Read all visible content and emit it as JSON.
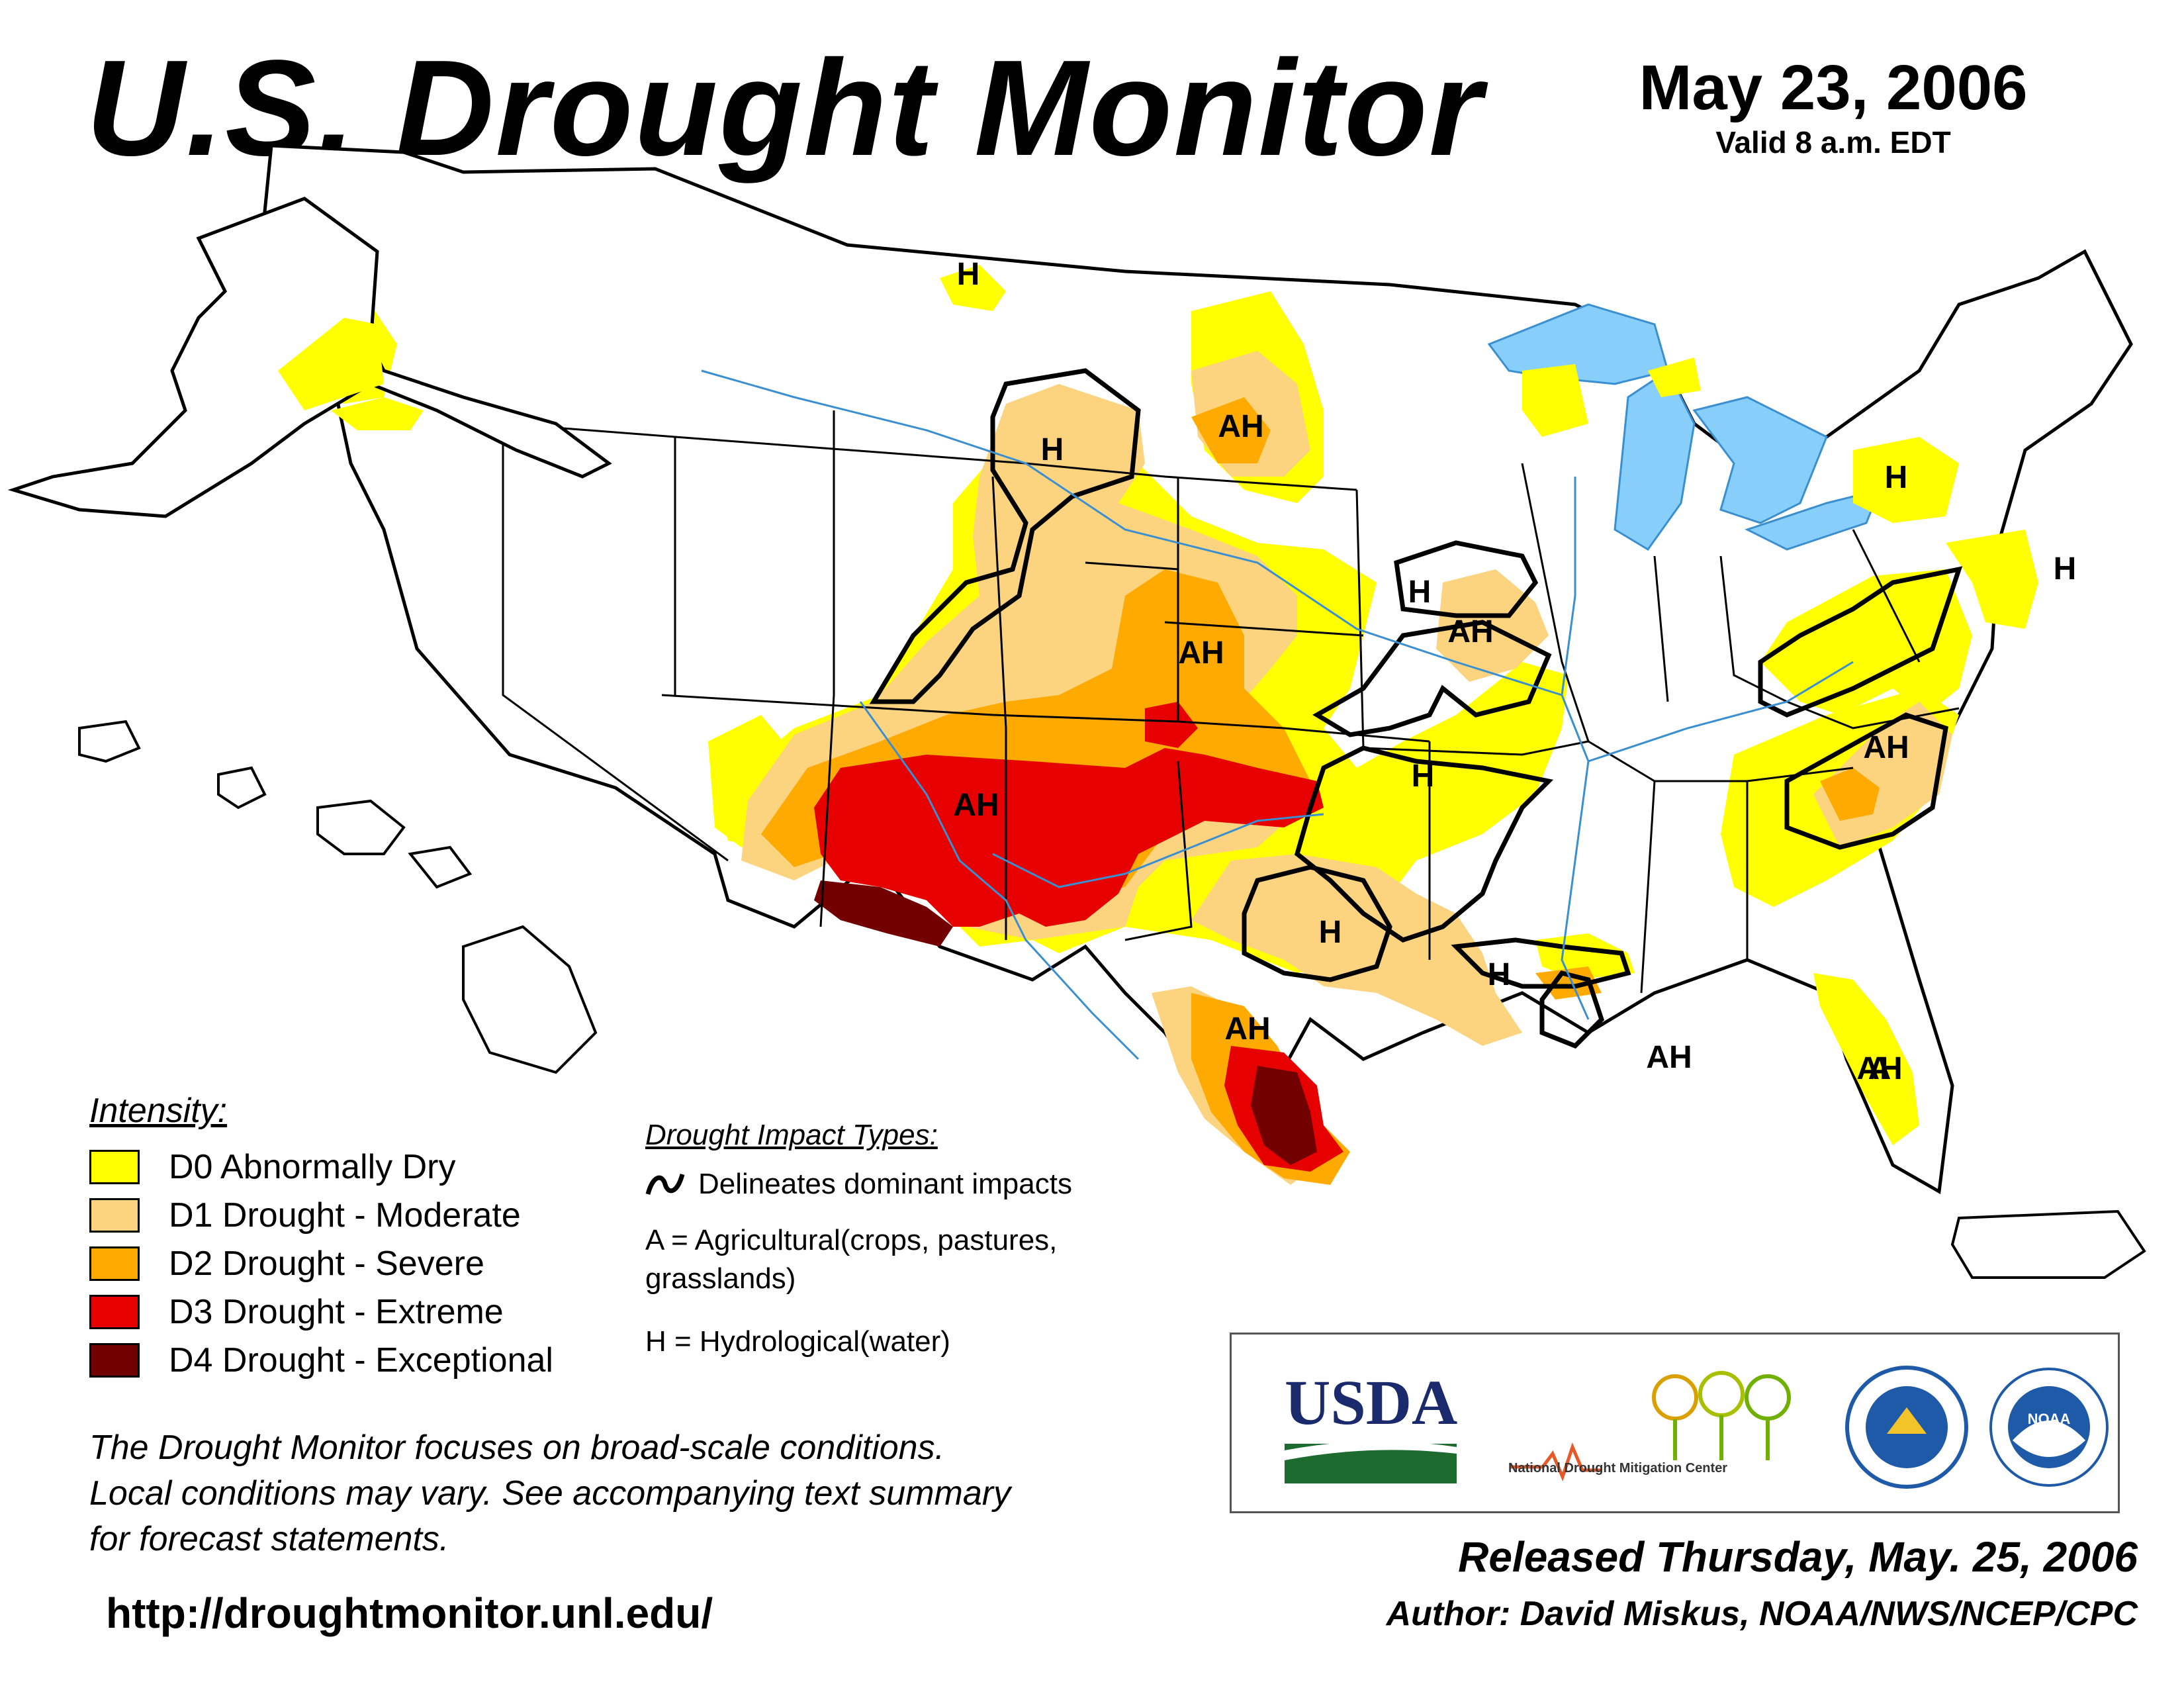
{
  "header": {
    "title": "U.S. Drought Monitor",
    "date": "May 23, 2006",
    "valid_time": "Valid 8 a.m. EDT"
  },
  "colors": {
    "D0": "#ffff00",
    "D1": "#fcd37f",
    "D2": "#ffaa00",
    "D3": "#e60000",
    "D4": "#730000",
    "water": "#87cefa",
    "boundary": "#000000",
    "county": "#999999"
  },
  "legend": {
    "heading": "Intensity:",
    "items": [
      {
        "code": "D0",
        "label": "D0 Abnormally Dry",
        "color": "#ffff00"
      },
      {
        "code": "D1",
        "label": "D1 Drought - Moderate",
        "color": "#fcd37f"
      },
      {
        "code": "D2",
        "label": "D2 Drought - Severe",
        "color": "#ffaa00"
      },
      {
        "code": "D3",
        "label": "D3 Drought - Extreme",
        "color": "#e60000"
      },
      {
        "code": "D4",
        "label": "D4 Drought - Exceptional",
        "color": "#730000"
      }
    ]
  },
  "impacts": {
    "heading": "Drought Impact Types:",
    "delineates": "Delineates dominant impacts",
    "agri_line1": "A = Agricultural(crops, pastures,",
    "agri_line2": "grasslands)",
    "hydro": "H = Hydrological(water)"
  },
  "map_labels": [
    "H",
    "H",
    "AH",
    "H",
    "AH",
    "AH",
    "H",
    "AH",
    "H",
    "H",
    "AH",
    "H",
    "H",
    "AH",
    "AH",
    "AH",
    "A"
  ],
  "disclaimer": {
    "line1": "The Drought Monitor focuses on broad-scale conditions.",
    "line2": "Local conditions may vary. See accompanying text summary",
    "line3": "for forecast statements."
  },
  "url": "http://droughtmonitor.unl.edu/",
  "logos": {
    "usda": "USDA",
    "ndmc": "National Drought Mitigation Center",
    "doc_icon": "department-of-commerce-seal-icon",
    "noaa": "NOAA"
  },
  "footer": {
    "released": "Released Thursday, May. 25, 2006",
    "author": "Author: David Miskus, NOAA/NWS/NCEP/CPC"
  }
}
